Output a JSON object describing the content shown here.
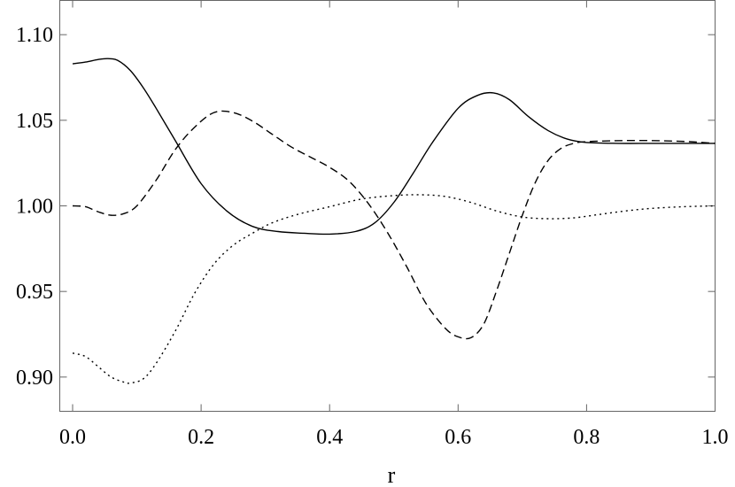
{
  "chart_data": {
    "type": "line",
    "xlabel": "r",
    "ylabel": "",
    "xlim": [
      -0.02,
      1.0
    ],
    "ylim": [
      0.88,
      1.12
    ],
    "x_ticks": [
      0.0,
      0.2,
      0.4,
      0.6,
      0.8,
      1.0
    ],
    "x_tick_labels": [
      "0.0",
      "0.2",
      "0.4",
      "0.6",
      "0.8",
      "1.0"
    ],
    "y_ticks": [
      0.9,
      0.95,
      1.0,
      1.05,
      1.1
    ],
    "y_tick_labels": [
      "0.90",
      "0.95",
      "1.00",
      "1.05",
      "1.10"
    ],
    "grid": false,
    "series": [
      {
        "style": "solid",
        "x": [
          0.0,
          0.02,
          0.04,
          0.055,
          0.07,
          0.09,
          0.11,
          0.13,
          0.16,
          0.2,
          0.24,
          0.28,
          0.32,
          0.36,
          0.4,
          0.44,
          0.47,
          0.5,
          0.53,
          0.56,
          0.6,
          0.63,
          0.655,
          0.68,
          0.71,
          0.74,
          0.77,
          0.8,
          0.85,
          0.9,
          0.95,
          1.0
        ],
        "y": [
          1.083,
          1.084,
          1.0855,
          1.086,
          1.085,
          1.079,
          1.069,
          1.057,
          1.038,
          1.013,
          0.997,
          0.988,
          0.985,
          0.984,
          0.9835,
          0.985,
          0.99,
          1.002,
          1.019,
          1.037,
          1.057,
          1.0645,
          1.066,
          1.062,
          1.052,
          1.044,
          1.039,
          1.037,
          1.0365,
          1.0365,
          1.0365,
          1.0365
        ]
      },
      {
        "style": "dashed",
        "x": [
          0.0,
          0.02,
          0.04,
          0.06,
          0.08,
          0.1,
          0.13,
          0.16,
          0.19,
          0.22,
          0.25,
          0.28,
          0.31,
          0.34,
          0.37,
          0.4,
          0.43,
          0.46,
          0.49,
          0.52,
          0.55,
          0.58,
          0.6,
          0.62,
          0.64,
          0.66,
          0.68,
          0.7,
          0.72,
          0.74,
          0.76,
          0.78,
          0.8,
          0.84,
          0.88,
          0.92,
          0.96,
          1.0
        ],
        "y": [
          1.0,
          0.9995,
          0.9965,
          0.9945,
          0.9955,
          1.0,
          1.015,
          1.033,
          1.046,
          1.0545,
          1.0545,
          1.0495,
          1.042,
          1.0345,
          1.0285,
          1.0225,
          1.0145,
          1.0015,
          0.9845,
          0.9645,
          0.943,
          0.9285,
          0.9235,
          0.923,
          0.931,
          0.9505,
          0.9725,
          0.9945,
          1.0135,
          1.0265,
          1.0335,
          1.0365,
          1.0375,
          1.038,
          1.0382,
          1.038,
          1.0375,
          1.0365
        ]
      },
      {
        "style": "dotted",
        "x": [
          0.0,
          0.02,
          0.04,
          0.06,
          0.08,
          0.09,
          0.11,
          0.13,
          0.16,
          0.19,
          0.22,
          0.25,
          0.28,
          0.31,
          0.35,
          0.4,
          0.45,
          0.5,
          0.54,
          0.58,
          0.62,
          0.66,
          0.7,
          0.74,
          0.78,
          0.82,
          0.86,
          0.9,
          0.95,
          1.0
        ],
        "y": [
          0.914,
          0.912,
          0.906,
          0.9,
          0.897,
          0.8965,
          0.899,
          0.908,
          0.927,
          0.949,
          0.966,
          0.977,
          0.984,
          0.99,
          0.995,
          0.9995,
          1.004,
          1.006,
          1.0065,
          1.0055,
          1.002,
          0.997,
          0.9935,
          0.9925,
          0.993,
          0.995,
          0.997,
          0.9985,
          0.9995,
          1.0
        ]
      }
    ]
  }
}
